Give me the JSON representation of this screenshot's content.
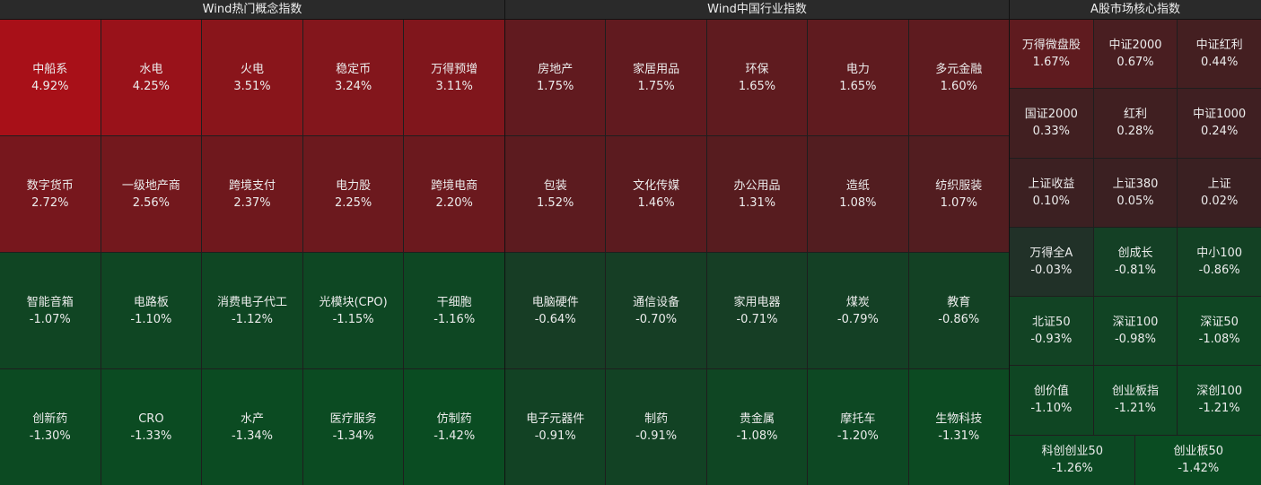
{
  "panels": [
    {
      "title": "Wind热门概念指数",
      "tiles": [
        {
          "name": "中船系",
          "change": "4.92%"
        },
        {
          "name": "水电",
          "change": "4.25%"
        },
        {
          "name": "火电",
          "change": "3.51%"
        },
        {
          "name": "稳定币",
          "change": "3.24%"
        },
        {
          "name": "万得预增",
          "change": "3.11%"
        },
        {
          "name": "数字货币",
          "change": "2.72%"
        },
        {
          "name": "一级地产商",
          "change": "2.56%"
        },
        {
          "name": "跨境支付",
          "change": "2.37%"
        },
        {
          "name": "电力股",
          "change": "2.25%"
        },
        {
          "name": "跨境电商",
          "change": "2.20%"
        },
        {
          "name": "智能音箱",
          "change": "-1.07%"
        },
        {
          "name": "电路板",
          "change": "-1.10%"
        },
        {
          "name": "消费电子代工",
          "change": "-1.12%"
        },
        {
          "name": "光模块(CPO)",
          "change": "-1.15%"
        },
        {
          "name": "干细胞",
          "change": "-1.16%"
        },
        {
          "name": "创新药",
          "change": "-1.30%"
        },
        {
          "name": "CRO",
          "change": "-1.33%"
        },
        {
          "name": "水产",
          "change": "-1.34%"
        },
        {
          "name": "医疗服务",
          "change": "-1.34%"
        },
        {
          "name": "仿制药",
          "change": "-1.42%"
        }
      ]
    },
    {
      "title": "Wind中国行业指数",
      "tiles": [
        {
          "name": "房地产",
          "change": "1.75%"
        },
        {
          "name": "家居用品",
          "change": "1.75%"
        },
        {
          "name": "环保",
          "change": "1.65%"
        },
        {
          "name": "电力",
          "change": "1.65%"
        },
        {
          "name": "多元金融",
          "change": "1.60%"
        },
        {
          "name": "包装",
          "change": "1.52%"
        },
        {
          "name": "文化传媒",
          "change": "1.46%"
        },
        {
          "name": "办公用品",
          "change": "1.31%"
        },
        {
          "name": "造纸",
          "change": "1.08%"
        },
        {
          "name": "纺织服装",
          "change": "1.07%"
        },
        {
          "name": "电脑硬件",
          "change": "-0.64%"
        },
        {
          "name": "通信设备",
          "change": "-0.70%"
        },
        {
          "name": "家用电器",
          "change": "-0.71%"
        },
        {
          "name": "煤炭",
          "change": "-0.79%"
        },
        {
          "name": "教育",
          "change": "-0.86%"
        },
        {
          "name": "电子元器件",
          "change": "-0.91%"
        },
        {
          "name": "制药",
          "change": "-0.91%"
        },
        {
          "name": "贵金属",
          "change": "-1.08%"
        },
        {
          "name": "摩托车",
          "change": "-1.20%"
        },
        {
          "name": "生物科技",
          "change": "-1.31%"
        }
      ]
    },
    {
      "title": "A股市场核心指数",
      "tiles": [
        {
          "name": "万得微盘股",
          "change": "1.67%"
        },
        {
          "name": "中证2000",
          "change": "0.67%"
        },
        {
          "name": "中证红利",
          "change": "0.44%"
        },
        {
          "name": "国证2000",
          "change": "0.33%"
        },
        {
          "name": "红利",
          "change": "0.28%"
        },
        {
          "name": "中证1000",
          "change": "0.24%"
        },
        {
          "name": "上证收益",
          "change": "0.10%"
        },
        {
          "name": "上证380",
          "change": "0.05%"
        },
        {
          "name": "上证",
          "change": "0.02%"
        },
        {
          "name": "万得全A",
          "change": "-0.03%"
        },
        {
          "name": "创成长",
          "change": "-0.81%"
        },
        {
          "name": "中小100",
          "change": "-0.86%"
        },
        {
          "name": "北证50",
          "change": "-0.93%"
        },
        {
          "name": "深证100",
          "change": "-0.98%"
        },
        {
          "name": "深证50",
          "change": "-1.08%"
        },
        {
          "name": "创价值",
          "change": "-1.10%"
        },
        {
          "name": "创业板指",
          "change": "-1.21%"
        },
        {
          "name": "深创100",
          "change": "-1.21%"
        },
        {
          "name": "科创创业50",
          "change": "-1.26%"
        },
        {
          "name": "创业板50",
          "change": "-1.42%"
        }
      ]
    }
  ]
}
